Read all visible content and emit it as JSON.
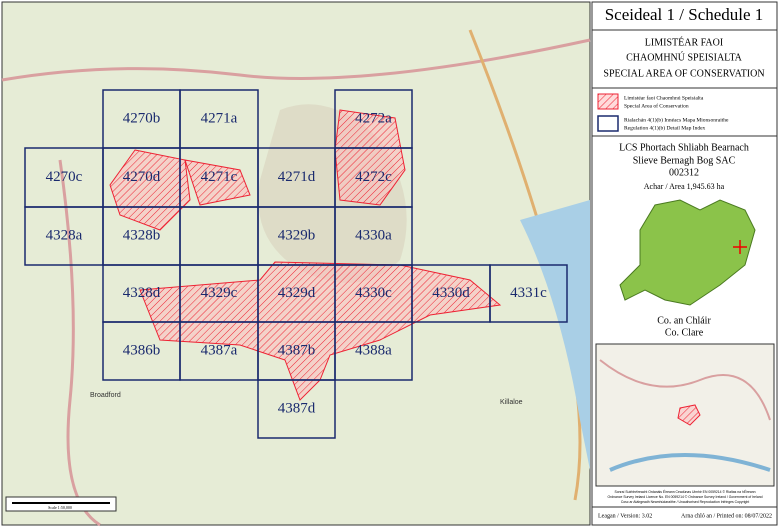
{
  "map": {
    "grid_cells": [
      "4270b",
      "4271a",
      "4272a",
      "4270c",
      "4270d",
      "4271c",
      "4271d",
      "4272c",
      "4328a",
      "4328b",
      "4329b",
      "4330a",
      "4328d",
      "4329c",
      "4329d",
      "4330c",
      "4330d",
      "4331c",
      "4386b",
      "4387a",
      "4387b",
      "4388a",
      "4387d"
    ],
    "place_labels": [
      "Broadford",
      "Killaloe"
    ],
    "scale": "Scale 1:50,000"
  },
  "panel": {
    "title": "Sceideal 1 / Schedule 1",
    "heading": [
      "LIMISTÉAR FAOI",
      "CHAOMHNÚ SPEISIALTA",
      "SPECIAL AREA OF CONSERVATION"
    ],
    "legend": [
      {
        "irish": "Limistéar faoi Chaomhnú Speisialta",
        "english": "Special Area of Conservation"
      },
      {
        "irish": "Rialachán 4(1)(b) Innéacs Mapa Mionsonraithe",
        "english": "Regulation 4(1)(b) Detail Map Index"
      }
    ],
    "site_irish": "LCS Phortach Shliabh Bearnach",
    "site_english": "Slieve Bernagh Bog SAC",
    "site_code": "002312",
    "area": "Achar / Area 1,945.63 ha",
    "county_irish": "Co. an Chláir",
    "county_english": "Co. Clare",
    "copyright": [
      "Sonraí Suirbhéireacht Ordanáis Éireann Ceadúnas Uimhir EN 0059214 © Rialtas na hÉireann",
      "Ordnance Survey Ireland Licence No. EN 0059214 © Ordnance Survey Ireland / Government of Ireland",
      "Cosc ar Atáirgeadh Neamhúdaraithe / Unauthorised Reproduction Infringes Copyright"
    ],
    "version": "Leagan / Version: 3.02",
    "printed": "Arna chló an / Printed on: 08/07/2022"
  }
}
